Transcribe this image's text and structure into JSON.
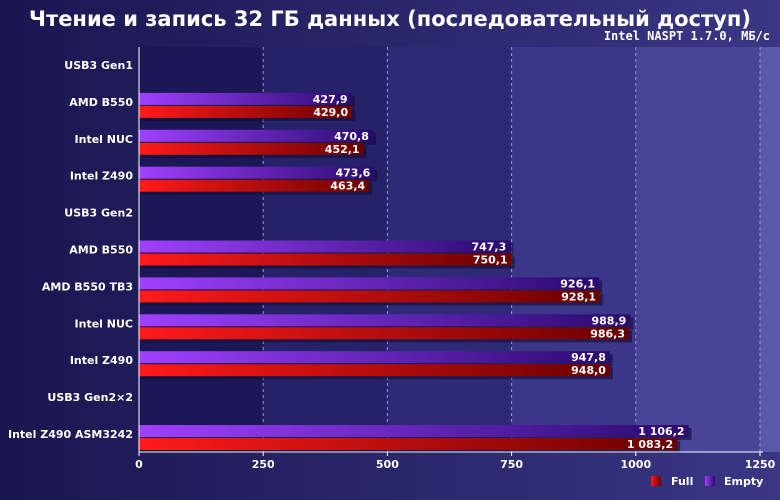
{
  "chart_data": {
    "type": "bar",
    "orientation": "horizontal",
    "title": "Чтение и запись 32 ГБ данных (последовательный доступ)",
    "subtitle": "Intel NASPT 1.7.0, МБ/с",
    "categories": [
      "USB3 Gen1",
      "AMD B550",
      "Intel NUC",
      "Intel Z490",
      "USB3 Gen2",
      "AMD B550",
      "AMD B550 TB3",
      "Intel NUC",
      "Intel Z490",
      "USB3 Gen2×2",
      "Intel Z490 ASM3242"
    ],
    "series": [
      {
        "name": "Empty",
        "color": "#7a1ff0",
        "values": [
          null,
          427.9,
          470.8,
          473.6,
          null,
          747.3,
          926.1,
          988.9,
          947.8,
          null,
          1106.2
        ],
        "labels": [
          "",
          "427,9",
          "470,8",
          "473,6",
          "",
          "747,3",
          "926,1",
          "988,9",
          "947,8",
          "",
          "1 106,2"
        ]
      },
      {
        "name": "Full",
        "color": "#e01010",
        "values": [
          null,
          429.0,
          452.1,
          463.4,
          null,
          750.1,
          928.1,
          986.3,
          948.0,
          null,
          1083.2
        ],
        "labels": [
          "",
          "429,0",
          "452,1",
          "463,4",
          "",
          "750,1",
          "928,1",
          "986,3",
          "948,0",
          "",
          "1 083,2"
        ]
      }
    ],
    "xlim": [
      0,
      1250
    ],
    "xticks": [
      0,
      250,
      500,
      750,
      1000,
      1250
    ],
    "xtick_labels": [
      "0",
      "250",
      "500",
      "750",
      "1000",
      "1250"
    ],
    "grid": "vertical dashed",
    "legend": {
      "position": "bottom-right",
      "entries": [
        "Full",
        "Empty"
      ]
    }
  }
}
